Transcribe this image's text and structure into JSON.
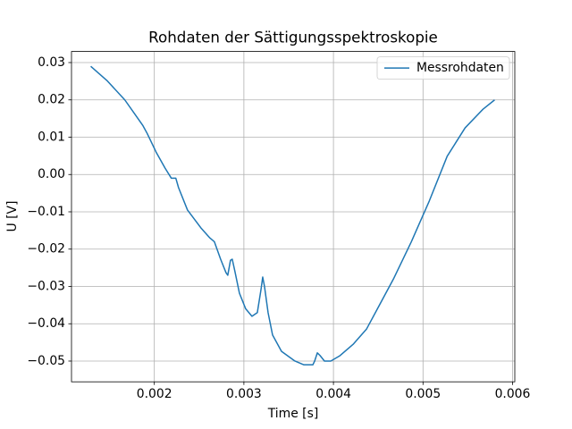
{
  "chart_data": {
    "type": "line",
    "title": "Rohdaten der Sättigungsspektroskopie",
    "x_label": "Time [s]",
    "y_label": "U [V]",
    "x": [
      0.00129,
      0.00147,
      0.00167,
      0.00187,
      0.00192,
      0.00202,
      0.00212,
      0.00219,
      0.00224,
      0.00227,
      0.00237,
      0.00252,
      0.00262,
      0.00267,
      0.00274,
      0.0028,
      0.00282,
      0.00285,
      0.00287,
      0.0029,
      0.00295,
      0.00302,
      0.00309,
      0.00315,
      0.00319,
      0.00321,
      0.00323,
      0.00327,
      0.00332,
      0.00342,
      0.00357,
      0.00367,
      0.00377,
      0.00379,
      0.00382,
      0.00385,
      0.0039,
      0.00397,
      0.00407,
      0.00422,
      0.00437,
      0.00452,
      0.00467,
      0.00487,
      0.00507,
      0.00527,
      0.00547,
      0.00567,
      0.0058
    ],
    "series": [
      {
        "name": "Messrohdaten",
        "color": "#1f77b4",
        "values": [
          0.029,
          0.0252,
          0.02,
          0.0132,
          0.011,
          0.006,
          0.0017,
          -0.001,
          -0.001,
          -0.0035,
          -0.0095,
          -0.0143,
          -0.017,
          -0.018,
          -0.0227,
          -0.0263,
          -0.027,
          -0.023,
          -0.0227,
          -0.026,
          -0.0318,
          -0.036,
          -0.038,
          -0.037,
          -0.031,
          -0.0275,
          -0.03,
          -0.037,
          -0.043,
          -0.0474,
          -0.05,
          -0.051,
          -0.051,
          -0.05,
          -0.0478,
          -0.0485,
          -0.05,
          -0.05,
          -0.0486,
          -0.0455,
          -0.0414,
          -0.0347,
          -0.028,
          -0.018,
          -0.0071,
          0.0049,
          0.0125,
          0.0175,
          0.02
        ]
      }
    ],
    "xlim": [
      0.001075,
      0.006025
    ],
    "ylim": [
      -0.05556,
      0.03297
    ],
    "xticks": [
      0.002,
      0.003,
      0.004,
      0.005,
      0.006
    ],
    "yticks": [
      {
        "value": -0.05,
        "label": "−0.05"
      },
      {
        "value": -0.04,
        "label": "−0.04"
      },
      {
        "value": -0.03,
        "label": "−0.03"
      },
      {
        "value": -0.02,
        "label": "−0.02"
      },
      {
        "value": -0.01,
        "label": "−0.01"
      },
      {
        "value": 0,
        "label": "0.00"
      },
      0.01,
      0.02,
      0.03
    ],
    "grid": true,
    "legend": "upper right"
  }
}
